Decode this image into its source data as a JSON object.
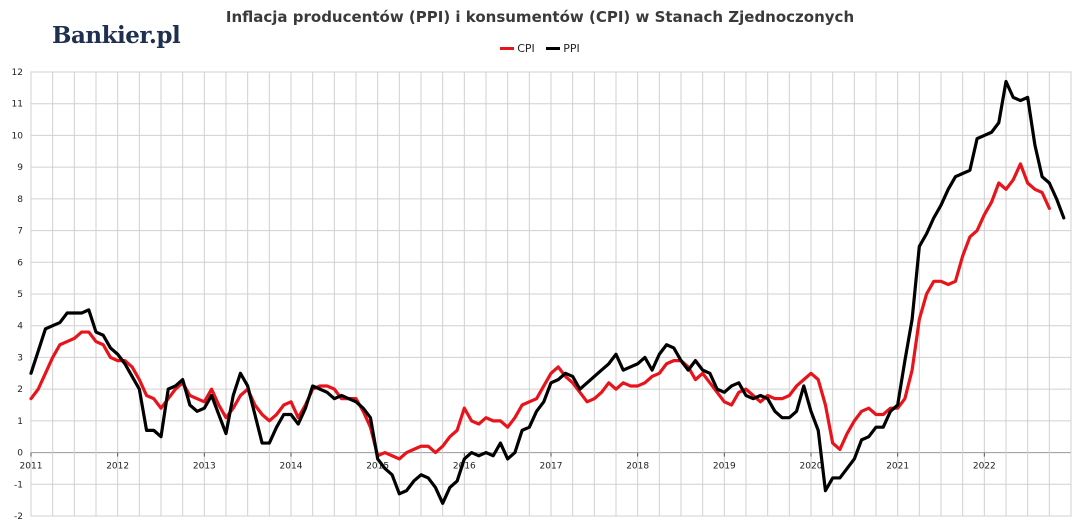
{
  "logo": {
    "text": "Bankier.pl"
  },
  "chart_data": {
    "type": "line",
    "title": "Inflacja producentów (PPI) i konsumentów (CPI) w Stanach Zjednoczonych",
    "xlabel": "",
    "ylabel": "",
    "x_start": "2011-01",
    "x_tick_labels": [
      "2011",
      "2012",
      "2013",
      "2014",
      "2015",
      "2016",
      "2017",
      "2018",
      "2019",
      "2020",
      "2021",
      "2022"
    ],
    "y_ticks": [
      -2,
      -1,
      0,
      1,
      2,
      3,
      4,
      5,
      6,
      7,
      8,
      9,
      10,
      11,
      12
    ],
    "ylim": [
      -2,
      12
    ],
    "grid": true,
    "legend_position": "top-center",
    "series": [
      {
        "name": "CPI",
        "color": "#e8141b",
        "values": [
          1.7,
          2.0,
          2.5,
          3.0,
          3.4,
          3.5,
          3.6,
          3.8,
          3.8,
          3.5,
          3.4,
          3.0,
          2.9,
          2.9,
          2.7,
          2.3,
          1.8,
          1.7,
          1.4,
          1.7,
          2.0,
          2.2,
          1.8,
          1.7,
          1.6,
          2.0,
          1.5,
          1.1,
          1.4,
          1.8,
          2.0,
          1.5,
          1.2,
          1.0,
          1.2,
          1.5,
          1.6,
          1.1,
          1.5,
          2.0,
          2.1,
          2.1,
          2.0,
          1.7,
          1.7,
          1.7,
          1.3,
          0.8,
          -0.1,
          0.0,
          -0.1,
          -0.2,
          0.0,
          0.1,
          0.2,
          0.2,
          0.0,
          0.2,
          0.5,
          0.7,
          1.4,
          1.0,
          0.9,
          1.1,
          1.0,
          1.0,
          0.8,
          1.1,
          1.5,
          1.6,
          1.7,
          2.1,
          2.5,
          2.7,
          2.4,
          2.2,
          1.9,
          1.6,
          1.7,
          1.9,
          2.2,
          2.0,
          2.2,
          2.1,
          2.1,
          2.2,
          2.4,
          2.5,
          2.8,
          2.9,
          2.9,
          2.7,
          2.3,
          2.5,
          2.2,
          1.9,
          1.6,
          1.5,
          1.9,
          2.0,
          1.8,
          1.6,
          1.8,
          1.7,
          1.7,
          1.8,
          2.1,
          2.3,
          2.5,
          2.3,
          1.5,
          0.3,
          0.1,
          0.6,
          1.0,
          1.3,
          1.4,
          1.2,
          1.2,
          1.4,
          1.4,
          1.7,
          2.6,
          4.2,
          5.0,
          5.4,
          5.4,
          5.3,
          5.4,
          6.2,
          6.8,
          7.0,
          7.5,
          7.9,
          8.5,
          8.3,
          8.6,
          9.1,
          8.5,
          8.3,
          8.2,
          7.7
        ]
      },
      {
        "name": "PPI",
        "color": "#000000",
        "values": [
          2.5,
          3.2,
          3.9,
          4.0,
          4.1,
          4.4,
          4.4,
          4.4,
          4.5,
          3.8,
          3.7,
          3.3,
          3.1,
          2.8,
          2.4,
          2.0,
          0.7,
          0.7,
          0.5,
          2.0,
          2.1,
          2.3,
          1.5,
          1.3,
          1.4,
          1.8,
          1.2,
          0.6,
          1.8,
          2.5,
          2.1,
          1.2,
          0.3,
          0.3,
          0.8,
          1.2,
          1.2,
          0.9,
          1.4,
          2.1,
          2.0,
          1.9,
          1.7,
          1.8,
          1.7,
          1.6,
          1.4,
          1.1,
          -0.2,
          -0.5,
          -0.7,
          -1.3,
          -1.2,
          -0.9,
          -0.7,
          -0.8,
          -1.1,
          -1.6,
          -1.1,
          -0.9,
          -0.2,
          0.0,
          -0.1,
          0.0,
          -0.1,
          0.3,
          -0.2,
          0.0,
          0.7,
          0.8,
          1.3,
          1.6,
          2.2,
          2.3,
          2.5,
          2.4,
          2.0,
          2.2,
          2.4,
          2.6,
          2.8,
          3.1,
          2.6,
          2.7,
          2.8,
          3.0,
          2.6,
          3.1,
          3.4,
          3.3,
          2.9,
          2.6,
          2.9,
          2.6,
          2.5,
          2.0,
          1.9,
          2.1,
          2.2,
          1.8,
          1.7,
          1.8,
          1.7,
          1.3,
          1.1,
          1.1,
          1.3,
          2.1,
          1.3,
          0.7,
          -1.2,
          -0.8,
          -0.8,
          -0.5,
          -0.2,
          0.4,
          0.5,
          0.8,
          0.8,
          1.3,
          1.5,
          2.9,
          4.2,
          6.5,
          6.9,
          7.4,
          7.8,
          8.3,
          8.7,
          8.8,
          8.9,
          9.9,
          10.0,
          10.1,
          10.4,
          11.7,
          11.2,
          11.1,
          11.2,
          9.7,
          8.7,
          8.5,
          8.0,
          7.4
        ]
      }
    ]
  }
}
